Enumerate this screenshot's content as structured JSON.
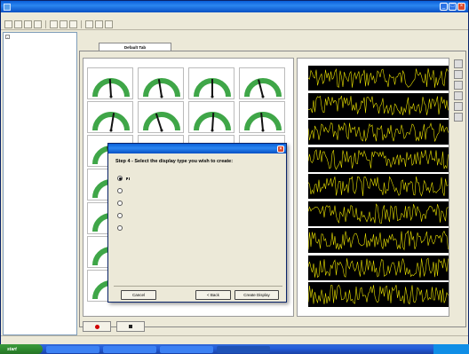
{
  "window": {
    "title": ""
  },
  "menu": [
    "",
    "",
    "",
    "",
    "",
    "",
    ""
  ],
  "toolbar": {
    "button_count": 9
  },
  "tree": [
    {
      "label": "",
      "level": 0
    },
    {
      "label": "",
      "level": 1
    },
    {
      "label": "",
      "level": 1
    },
    {
      "label": "",
      "level": 1
    },
    {
      "label": "",
      "level": 0
    },
    {
      "label": "",
      "level": 0
    },
    {
      "label": "",
      "level": 0
    }
  ],
  "tab": {
    "label": "Default Tab"
  },
  "meter_panel": {
    "title": "",
    "meters": [
      {
        "value": 0.48
      },
      {
        "value": 0.45
      },
      {
        "value": 0.5
      },
      {
        "value": 0.42
      },
      {
        "value": 0.55
      },
      {
        "value": 0.4
      },
      {
        "value": 0.52
      },
      {
        "value": 0.47
      },
      {
        "value": 0.44
      },
      {
        "value": 0.5
      },
      {
        "value": 0.46
      },
      {
        "value": 0.53
      },
      {
        "value": 0.49
      },
      {
        "value": 0.43
      },
      {
        "value": 0.51
      },
      {
        "value": 0.45
      },
      {
        "value": 0.5
      },
      {
        "value": 0.47
      },
      {
        "value": 0.52
      },
      {
        "value": 0.44
      },
      {
        "value": 0.46
      },
      {
        "value": 0.5
      },
      {
        "value": 0.48
      },
      {
        "value": 0.45
      },
      {
        "value": 0.51
      },
      {
        "value": 0.49
      },
      {
        "value": 0.47
      },
      {
        "value": 0.5
      }
    ],
    "top_readouts": [
      "",
      "",
      "",
      ""
    ],
    "bottom_readouts": [
      "",
      "",
      "",
      ""
    ]
  },
  "strip_panel": {
    "title": "",
    "channel_count": 9,
    "time_start": "",
    "time_end": ""
  },
  "dialog": {
    "title": "",
    "heading": "Step 4 - Select the display type you wish to create:",
    "options": [
      {
        "label": "",
        "selected": true
      },
      {
        "label": "",
        "selected": false
      },
      {
        "label": "",
        "selected": false
      },
      {
        "label": "",
        "selected": false
      },
      {
        "label": "",
        "selected": false
      }
    ],
    "buttons": {
      "cancel": "Cancel",
      "back": "< Back",
      "create": "Create Display"
    }
  },
  "status": {
    "text": ""
  },
  "taskbar": {
    "start_label": "start",
    "items": [
      "",
      "",
      "",
      ""
    ]
  },
  "colors": {
    "meter_arc": "#3fa648",
    "strip_bg": "#000000",
    "strip_trace": "#e8e000",
    "record": "#d00000"
  }
}
